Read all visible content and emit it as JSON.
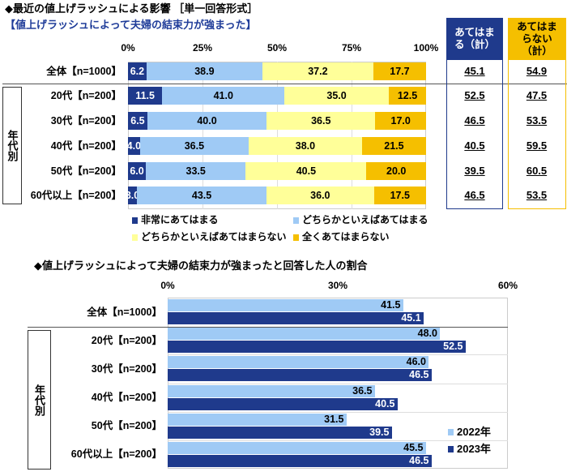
{
  "colors": {
    "very": "#1f3a8c",
    "somewhat": "#9fcaf5",
    "somewhat_not": "#ffff99",
    "not_at_all": "#f5bf00",
    "y2022": "#9fcaf5",
    "y2023": "#1f3a8c",
    "table_blue": "#1f3a8c",
    "table_yellow": "#f5bf00"
  },
  "chart_data": [
    {
      "type": "bar",
      "orientation": "horizontal-stacked",
      "title": "◆最近の値上げラッシュによる影響 ［単一回答形式］",
      "subtitle": "【値上げラッシュによって夫婦の結束力が強まった】",
      "xlim": [
        0,
        100
      ],
      "ticks": [
        "0%",
        "25%",
        "50%",
        "75%",
        "100%"
      ],
      "group_label": "年代別",
      "categories": [
        "全体【n=1000】",
        "20代【n=200】",
        "30代【n=200】",
        "40代【n=200】",
        "50代【n=200】",
        "60代以上【n=200】"
      ],
      "series": [
        {
          "name": "非常にあてはまる",
          "values": [
            6.2,
            11.5,
            6.5,
            4.0,
            6.0,
            3.0
          ]
        },
        {
          "name": "どちらかといえばあてはまる",
          "values": [
            38.9,
            41.0,
            40.0,
            36.5,
            33.5,
            43.5
          ]
        },
        {
          "name": "どちらかといえばあてはまらない",
          "values": [
            37.2,
            35.0,
            36.5,
            38.0,
            40.5,
            36.0
          ]
        },
        {
          "name": "全くあてはまらない",
          "values": [
            17.7,
            12.5,
            17.0,
            21.5,
            20.0,
            17.5
          ]
        }
      ],
      "legend": "bottom",
      "summary_table": {
        "headers": [
          "あてはまる（計）",
          "あてはまらない（計）"
        ],
        "rows": [
          [
            "45.1",
            "54.9"
          ],
          [
            "52.5",
            "47.5"
          ],
          [
            "46.5",
            "53.5"
          ],
          [
            "40.5",
            "59.5"
          ],
          [
            "39.5",
            "60.5"
          ],
          [
            "46.5",
            "53.5"
          ]
        ]
      }
    },
    {
      "type": "bar",
      "orientation": "horizontal-grouped",
      "title": "◆値上げラッシュによって夫婦の結束力が強まったと回答した人の割合",
      "xlim": [
        0,
        60
      ],
      "ticks": [
        "0%",
        "30%",
        "60%"
      ],
      "group_label": "年代別",
      "categories": [
        "全体【n=1000】",
        "20代【n=200】",
        "30代【n=200】",
        "40代【n=200】",
        "50代【n=200】",
        "60代以上【n=200】"
      ],
      "series": [
        {
          "name": "2022年",
          "values": [
            41.5,
            48.0,
            46.0,
            36.5,
            31.5,
            45.5
          ]
        },
        {
          "name": "2023年",
          "values": [
            45.1,
            52.5,
            46.5,
            40.5,
            39.5,
            46.5
          ]
        }
      ],
      "legend": "bottom-right"
    }
  ]
}
